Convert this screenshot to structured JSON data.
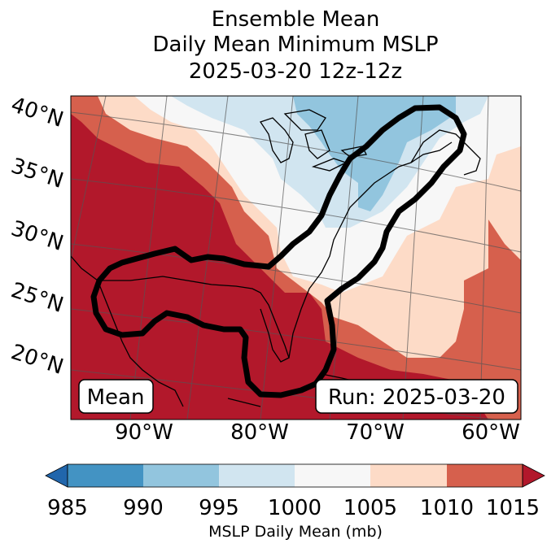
{
  "chart_data": {
    "type": "heatmap",
    "title_lines": [
      "Ensemble Mean",
      "Daily Mean Minimum MSLP",
      "2025-03-20 12z-12z"
    ],
    "lat_labels": [
      "40°N",
      "35°N",
      "30°N",
      "25°N",
      "20°N"
    ],
    "lon_labels": [
      "90°W",
      "80°W",
      "70°W",
      "60°W"
    ],
    "colorbar": {
      "label": "MSLP Daily Mean (mb)",
      "ticks": [
        985,
        990,
        995,
        1000,
        1005,
        1010,
        1015
      ],
      "tick_labels": [
        "985",
        "990",
        "995",
        "1000",
        "1005",
        "1010",
        "1015"
      ],
      "bins": [
        {
          "range": "<985",
          "color": "#2166ac"
        },
        {
          "range": "985-990",
          "color": "#4393c3"
        },
        {
          "range": "990-995",
          "color": "#92c5de"
        },
        {
          "range": "995-1000",
          "color": "#d1e5f0"
        },
        {
          "range": "1000-1005",
          "color": "#f7f7f7"
        },
        {
          "range": "1005-1010",
          "color": "#fddbc7"
        },
        {
          "range": "1010-1015",
          "color": "#d6604d"
        },
        {
          "range": ">1015",
          "color": "#b2182b"
        }
      ],
      "extend": "both"
    },
    "annotations": {
      "left_box": "Mean",
      "right_box": "Run: 2025-03-20"
    },
    "contour": "black outlined region over the Gulf of Mexico, Florida and the US East Coast"
  }
}
